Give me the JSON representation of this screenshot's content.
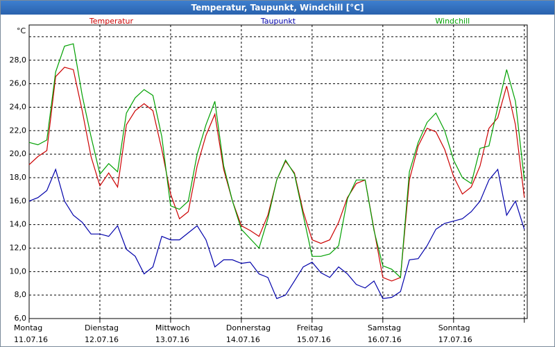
{
  "chart_data": {
    "type": "line",
    "title": "Temperatur, Taupunkt, Windchill [°C]",
    "y_label": "°C",
    "x": [
      0,
      3,
      6,
      9,
      12,
      15,
      18,
      21,
      24,
      27,
      30,
      33,
      36,
      39,
      42,
      45,
      48,
      51,
      54,
      57,
      60,
      63,
      66,
      69,
      72,
      75,
      78,
      81,
      84,
      87,
      90,
      93,
      96,
      99,
      102,
      105,
      108,
      111,
      114,
      117,
      120,
      123,
      126,
      129,
      132,
      135,
      138,
      141,
      144,
      147,
      150,
      153,
      156,
      159,
      162,
      165,
      168
    ],
    "xlim": [
      0,
      169
    ],
    "xticks": [
      {
        "value": 0,
        "label": "Montag",
        "date": "11.07.16"
      },
      {
        "value": 24,
        "label": "Dienstag",
        "date": "12.07.16"
      },
      {
        "value": 48,
        "label": "Mittwoch",
        "date": "13.07.16"
      },
      {
        "value": 72,
        "label": "Donnerstag",
        "date": "14.07.16"
      },
      {
        "value": 96,
        "label": "Freitag",
        "date": "15.07.16"
      },
      {
        "value": 120,
        "label": "Samstag",
        "date": "16.07.16"
      },
      {
        "value": 144,
        "label": "Sonntag",
        "date": "17.07.16"
      },
      {
        "value": 168,
        "label": "",
        "date": ""
      }
    ],
    "ylim": [
      6,
      31
    ],
    "yticks": [
      {
        "value": 6,
        "label": "6,0"
      },
      {
        "value": 8,
        "label": "8,0"
      },
      {
        "value": 10,
        "label": "10,0"
      },
      {
        "value": 12,
        "label": "12,0"
      },
      {
        "value": 14,
        "label": "14,0"
      },
      {
        "value": 16,
        "label": "16,0"
      },
      {
        "value": 18,
        "label": "18,0"
      },
      {
        "value": 20,
        "label": "20,0"
      },
      {
        "value": 22,
        "label": "22,0"
      },
      {
        "value": 24,
        "label": "24,0"
      },
      {
        "value": 26,
        "label": "26,0"
      },
      {
        "value": 28,
        "label": "28,0"
      },
      {
        "value": 30,
        "label": ""
      }
    ],
    "grid": true,
    "series": [
      {
        "name": "Temperatur",
        "color": "#cc0000",
        "values": [
          19.1,
          19.8,
          20.3,
          26.6,
          27.4,
          27.2,
          23.7,
          19.8,
          17.3,
          18.4,
          17.2,
          22.5,
          23.7,
          24.3,
          23.7,
          20.4,
          16.6,
          14.5,
          15.1,
          19.0,
          21.6,
          23.4,
          18.7,
          16.0,
          13.9,
          13.5,
          13.0,
          14.8,
          17.8,
          19.4,
          18.4,
          15.1,
          12.7,
          12.4,
          12.7,
          14.2,
          16.3,
          17.5,
          17.8,
          13.6,
          9.5,
          9.2,
          9.5,
          17.8,
          20.7,
          22.2,
          21.9,
          20.4,
          18.1,
          16.6,
          17.2,
          19.0,
          22.2,
          23.1,
          25.8,
          22.5,
          16.3
        ]
      },
      {
        "name": "Taupunkt",
        "color": "#0000aa",
        "values": [
          16.0,
          16.3,
          16.9,
          18.7,
          16.0,
          14.8,
          14.2,
          13.2,
          13.2,
          13.0,
          13.9,
          11.9,
          11.3,
          9.8,
          10.4,
          13.0,
          12.7,
          12.7,
          13.3,
          13.9,
          12.7,
          10.4,
          11.0,
          11.0,
          10.7,
          10.8,
          9.8,
          9.5,
          7.7,
          8.0,
          9.2,
          10.4,
          10.8,
          9.9,
          9.5,
          10.4,
          9.8,
          8.9,
          8.6,
          9.2,
          7.7,
          7.8,
          8.3,
          11.0,
          11.1,
          12.2,
          13.6,
          14.1,
          14.3,
          14.5,
          15.1,
          16.0,
          17.8,
          18.7,
          14.8,
          16.0,
          13.6
        ]
      },
      {
        "name": "Windchill",
        "color": "#00a000",
        "values": [
          21.0,
          20.8,
          21.2,
          27.0,
          29.2,
          29.4,
          25.0,
          21.5,
          18.3,
          19.2,
          18.5,
          23.5,
          24.8,
          25.5,
          25.0,
          21.5,
          15.6,
          15.3,
          16.0,
          20.0,
          22.5,
          24.5,
          19.0,
          16.0,
          13.6,
          12.8,
          12.0,
          14.5,
          17.8,
          19.5,
          18.3,
          14.8,
          11.3,
          11.3,
          11.5,
          12.2,
          16.2,
          17.8,
          17.8,
          13.5,
          10.5,
          10.2,
          9.5,
          18.5,
          21.0,
          22.7,
          23.5,
          22.0,
          19.5,
          18.0,
          17.5,
          20.5,
          20.7,
          24.0,
          27.2,
          24.5,
          17.8
        ]
      }
    ]
  }
}
